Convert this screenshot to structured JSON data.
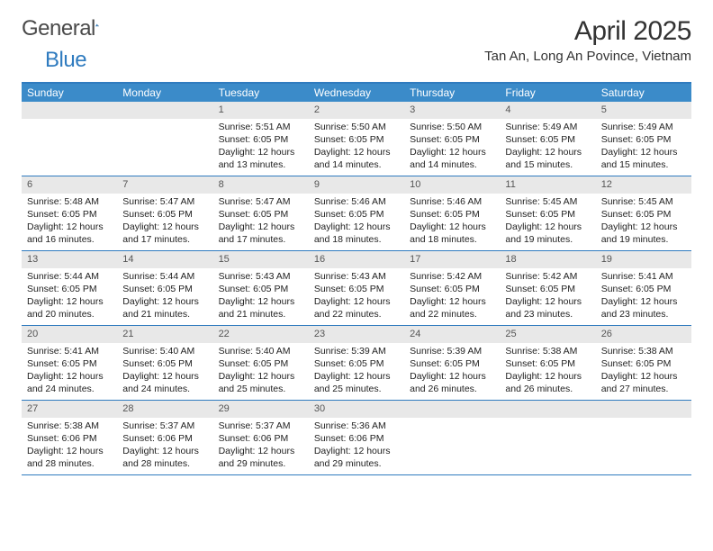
{
  "logo": {
    "text1": "General",
    "text2": "Blue"
  },
  "title": "April 2025",
  "location": "Tan An, Long An Povince, Vietnam",
  "colors": {
    "header_bar": "#3b8bc9",
    "border": "#2f7bbf",
    "daynum_bg": "#e8e8e8",
    "text": "#222222"
  },
  "weekdays": [
    "Sunday",
    "Monday",
    "Tuesday",
    "Wednesday",
    "Thursday",
    "Friday",
    "Saturday"
  ],
  "weeks": [
    [
      {
        "n": "",
        "empty": true
      },
      {
        "n": "",
        "empty": true
      },
      {
        "n": "1",
        "sunrise": "Sunrise: 5:51 AM",
        "sunset": "Sunset: 6:05 PM",
        "day1": "Daylight: 12 hours",
        "day2": "and 13 minutes."
      },
      {
        "n": "2",
        "sunrise": "Sunrise: 5:50 AM",
        "sunset": "Sunset: 6:05 PM",
        "day1": "Daylight: 12 hours",
        "day2": "and 14 minutes."
      },
      {
        "n": "3",
        "sunrise": "Sunrise: 5:50 AM",
        "sunset": "Sunset: 6:05 PM",
        "day1": "Daylight: 12 hours",
        "day2": "and 14 minutes."
      },
      {
        "n": "4",
        "sunrise": "Sunrise: 5:49 AM",
        "sunset": "Sunset: 6:05 PM",
        "day1": "Daylight: 12 hours",
        "day2": "and 15 minutes."
      },
      {
        "n": "5",
        "sunrise": "Sunrise: 5:49 AM",
        "sunset": "Sunset: 6:05 PM",
        "day1": "Daylight: 12 hours",
        "day2": "and 15 minutes."
      }
    ],
    [
      {
        "n": "6",
        "sunrise": "Sunrise: 5:48 AM",
        "sunset": "Sunset: 6:05 PM",
        "day1": "Daylight: 12 hours",
        "day2": "and 16 minutes."
      },
      {
        "n": "7",
        "sunrise": "Sunrise: 5:47 AM",
        "sunset": "Sunset: 6:05 PM",
        "day1": "Daylight: 12 hours",
        "day2": "and 17 minutes."
      },
      {
        "n": "8",
        "sunrise": "Sunrise: 5:47 AM",
        "sunset": "Sunset: 6:05 PM",
        "day1": "Daylight: 12 hours",
        "day2": "and 17 minutes."
      },
      {
        "n": "9",
        "sunrise": "Sunrise: 5:46 AM",
        "sunset": "Sunset: 6:05 PM",
        "day1": "Daylight: 12 hours",
        "day2": "and 18 minutes."
      },
      {
        "n": "10",
        "sunrise": "Sunrise: 5:46 AM",
        "sunset": "Sunset: 6:05 PM",
        "day1": "Daylight: 12 hours",
        "day2": "and 18 minutes."
      },
      {
        "n": "11",
        "sunrise": "Sunrise: 5:45 AM",
        "sunset": "Sunset: 6:05 PM",
        "day1": "Daylight: 12 hours",
        "day2": "and 19 minutes."
      },
      {
        "n": "12",
        "sunrise": "Sunrise: 5:45 AM",
        "sunset": "Sunset: 6:05 PM",
        "day1": "Daylight: 12 hours",
        "day2": "and 19 minutes."
      }
    ],
    [
      {
        "n": "13",
        "sunrise": "Sunrise: 5:44 AM",
        "sunset": "Sunset: 6:05 PM",
        "day1": "Daylight: 12 hours",
        "day2": "and 20 minutes."
      },
      {
        "n": "14",
        "sunrise": "Sunrise: 5:44 AM",
        "sunset": "Sunset: 6:05 PM",
        "day1": "Daylight: 12 hours",
        "day2": "and 21 minutes."
      },
      {
        "n": "15",
        "sunrise": "Sunrise: 5:43 AM",
        "sunset": "Sunset: 6:05 PM",
        "day1": "Daylight: 12 hours",
        "day2": "and 21 minutes."
      },
      {
        "n": "16",
        "sunrise": "Sunrise: 5:43 AM",
        "sunset": "Sunset: 6:05 PM",
        "day1": "Daylight: 12 hours",
        "day2": "and 22 minutes."
      },
      {
        "n": "17",
        "sunrise": "Sunrise: 5:42 AM",
        "sunset": "Sunset: 6:05 PM",
        "day1": "Daylight: 12 hours",
        "day2": "and 22 minutes."
      },
      {
        "n": "18",
        "sunrise": "Sunrise: 5:42 AM",
        "sunset": "Sunset: 6:05 PM",
        "day1": "Daylight: 12 hours",
        "day2": "and 23 minutes."
      },
      {
        "n": "19",
        "sunrise": "Sunrise: 5:41 AM",
        "sunset": "Sunset: 6:05 PM",
        "day1": "Daylight: 12 hours",
        "day2": "and 23 minutes."
      }
    ],
    [
      {
        "n": "20",
        "sunrise": "Sunrise: 5:41 AM",
        "sunset": "Sunset: 6:05 PM",
        "day1": "Daylight: 12 hours",
        "day2": "and 24 minutes."
      },
      {
        "n": "21",
        "sunrise": "Sunrise: 5:40 AM",
        "sunset": "Sunset: 6:05 PM",
        "day1": "Daylight: 12 hours",
        "day2": "and 24 minutes."
      },
      {
        "n": "22",
        "sunrise": "Sunrise: 5:40 AM",
        "sunset": "Sunset: 6:05 PM",
        "day1": "Daylight: 12 hours",
        "day2": "and 25 minutes."
      },
      {
        "n": "23",
        "sunrise": "Sunrise: 5:39 AM",
        "sunset": "Sunset: 6:05 PM",
        "day1": "Daylight: 12 hours",
        "day2": "and 25 minutes."
      },
      {
        "n": "24",
        "sunrise": "Sunrise: 5:39 AM",
        "sunset": "Sunset: 6:05 PM",
        "day1": "Daylight: 12 hours",
        "day2": "and 26 minutes."
      },
      {
        "n": "25",
        "sunrise": "Sunrise: 5:38 AM",
        "sunset": "Sunset: 6:05 PM",
        "day1": "Daylight: 12 hours",
        "day2": "and 26 minutes."
      },
      {
        "n": "26",
        "sunrise": "Sunrise: 5:38 AM",
        "sunset": "Sunset: 6:05 PM",
        "day1": "Daylight: 12 hours",
        "day2": "and 27 minutes."
      }
    ],
    [
      {
        "n": "27",
        "sunrise": "Sunrise: 5:38 AM",
        "sunset": "Sunset: 6:06 PM",
        "day1": "Daylight: 12 hours",
        "day2": "and 28 minutes."
      },
      {
        "n": "28",
        "sunrise": "Sunrise: 5:37 AM",
        "sunset": "Sunset: 6:06 PM",
        "day1": "Daylight: 12 hours",
        "day2": "and 28 minutes."
      },
      {
        "n": "29",
        "sunrise": "Sunrise: 5:37 AM",
        "sunset": "Sunset: 6:06 PM",
        "day1": "Daylight: 12 hours",
        "day2": "and 29 minutes."
      },
      {
        "n": "30",
        "sunrise": "Sunrise: 5:36 AM",
        "sunset": "Sunset: 6:06 PM",
        "day1": "Daylight: 12 hours",
        "day2": "and 29 minutes."
      },
      {
        "n": "",
        "empty": true
      },
      {
        "n": "",
        "empty": true
      },
      {
        "n": "",
        "empty": true
      }
    ]
  ]
}
